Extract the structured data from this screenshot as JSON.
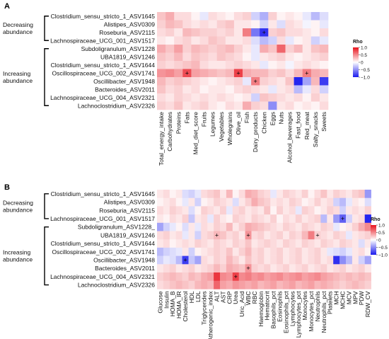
{
  "chart_data": [
    {
      "panel_label": "A",
      "type": "heatmap",
      "legend": {
        "title": "Rho",
        "ticks": [
          "1.0",
          "0.5",
          "0",
          "−0.5",
          "−1.0"
        ]
      },
      "groups": [
        {
          "label_lines": [
            "Decreasing",
            "abundance"
          ],
          "rows": [
            0,
            3
          ]
        },
        {
          "label_lines": [
            "Increasing",
            "abundance"
          ],
          "rows": [
            4,
            11
          ]
        }
      ],
      "rows": [
        "Clostridium_sensu_stricto_1_ASV1645",
        "Alistipes_ASV0309",
        "Roseburia_ASV2115",
        "Lachnospiraceae_UCG_001_ASV1517",
        "Subdoligranulum_ASV1228",
        "UBA1819_ASV1246",
        "Clostridium_sensu_stricto_1_ASV1644",
        "Oscillospiraceae_UCG_002_ASV1741",
        "Oscillibacter_ASV1948",
        "Bacteroides_ASV2011",
        "Lachnospiraceae_UCG_004_ASV2321",
        "Lachnoclostridium_ASV2326"
      ],
      "columns": [
        "Total_energy_intake",
        "Carbohydrates",
        "Proteins",
        "Fats",
        "Med_diet_score",
        "Fruits",
        "Legumes",
        "Vegetables",
        "Wholegrains",
        "Olive_oil",
        "Fish",
        "Dairy_products",
        "Chicken",
        "Eggs",
        "Nuts",
        "Alcohol_beverages",
        "Fast_food",
        "Red_meat",
        "Salty_snacks",
        "Sweets"
      ],
      "values": [
        [
          0.25,
          0.35,
          0.15,
          0.15,
          0.05,
          -0.1,
          0.15,
          0.1,
          0.05,
          0.15,
          0.2,
          -0.2,
          -0.35,
          0.2,
          0.05,
          0.1,
          0.05,
          -0.1,
          -0.3,
          -0.15
        ],
        [
          0.2,
          0.3,
          0.25,
          0.15,
          0.1,
          0.15,
          0.1,
          0.2,
          0.25,
          0.1,
          0.1,
          0.05,
          -0.2,
          0.1,
          -0.15,
          0.15,
          0.1,
          -0.05,
          0.05,
          -0.1
        ],
        [
          0.15,
          0.2,
          0.1,
          0.3,
          0.25,
          0.2,
          0.2,
          0.15,
          0.2,
          0.1,
          0.55,
          -0.6,
          -0.9,
          0.2,
          0.25,
          0.15,
          0.15,
          0.1,
          0.05,
          0.15
        ],
        [
          0.1,
          0.05,
          0.15,
          0.2,
          0.1,
          0.15,
          0.25,
          0.2,
          0.1,
          0.1,
          0.15,
          -0.15,
          -0.3,
          -0.2,
          0.15,
          -0.1,
          0.05,
          0.1,
          -0.2,
          -0.1
        ],
        [
          0.35,
          0.25,
          0.4,
          0.2,
          0.3,
          0.25,
          0.2,
          0.25,
          0.3,
          0.2,
          0.1,
          -0.1,
          0.35,
          0.25,
          0.65,
          0.2,
          0.3,
          0.1,
          0.25,
          0.3
        ],
        [
          0.25,
          0.2,
          0.3,
          0.15,
          0.25,
          0.2,
          0.15,
          0.25,
          0.2,
          0.15,
          0.05,
          -0.1,
          0.1,
          0.15,
          0.2,
          0.1,
          0.05,
          0.1,
          0.15,
          0.2
        ],
        [
          0.2,
          0.15,
          0.2,
          0.25,
          0.3,
          0.15,
          0.1,
          0.1,
          0.15,
          0.2,
          0.15,
          0.1,
          -0.1,
          0.05,
          0.1,
          -0.05,
          0.1,
          0.15,
          0.1,
          0.05
        ],
        [
          0.45,
          0.5,
          0.4,
          0.75,
          0.4,
          0.35,
          0.3,
          0.25,
          0.3,
          0.8,
          0.35,
          0.3,
          0.3,
          0.2,
          0.25,
          0.15,
          0.3,
          0.55,
          0.35,
          0.3
        ],
        [
          0.3,
          0.2,
          0.25,
          0.2,
          0.15,
          0.1,
          0.05,
          0.1,
          0.15,
          0.2,
          -0.1,
          0.55,
          0.2,
          0.15,
          0.1,
          0.25,
          -0.95,
          -0.4,
          0.3,
          -0.85
        ],
        [
          0.25,
          0.15,
          0.2,
          0.1,
          0.15,
          0.05,
          0.1,
          0.1,
          0.05,
          0.15,
          0.2,
          0.15,
          0.1,
          -0.1,
          0.1,
          0.15,
          -0.3,
          -0.1,
          0.15,
          -0.2
        ],
        [
          0.15,
          0.1,
          0.2,
          0.15,
          0.1,
          0.15,
          0.1,
          0.15,
          0.1,
          0.05,
          0.1,
          -0.2,
          0.25,
          0.2,
          0.15,
          0.1,
          0.15,
          0.05,
          0.2,
          0.1
        ],
        [
          0.2,
          0.15,
          0.25,
          0.1,
          0.15,
          0.2,
          0.1,
          0.05,
          0.15,
          0.1,
          0.35,
          0.2,
          0.15,
          -0.5,
          0.1,
          0.15,
          0.05,
          0.1,
          0.05,
          0.15
        ]
      ],
      "stars": [
        [
          2,
          12
        ],
        [
          7,
          3
        ],
        [
          7,
          9
        ],
        [
          7,
          17
        ],
        [
          8,
          11
        ]
      ]
    },
    {
      "panel_label": "B",
      "type": "heatmap",
      "legend": {
        "title": "Rho",
        "ticks": [
          "1.0",
          "0.5",
          "0",
          "−0.5",
          "−1.0"
        ]
      },
      "groups": [
        {
          "label_lines": [
            "Decreasing",
            "abundance"
          ],
          "rows": [
            0,
            3
          ]
        },
        {
          "label_lines": [
            "Increasing",
            "abundance"
          ],
          "rows": [
            4,
            11
          ]
        }
      ],
      "rows": [
        "Clostridium_sensu_stricto_1_ASV1645",
        "Alistipes_ASV0309",
        "Roseburia_ASV2115",
        "Lachnospiraceae_UCG_001_ASV1517",
        "Subdoligranulum_ASV1228_",
        "UBA1819_ASV1246",
        "Clostridium_sensu_stricto_1_ASV1644",
        "Oscillospiraceae_UCG_002_ASV1741",
        "Oscillibacter_ASV1948",
        "Bacteroides_ASV2011",
        "Lachnospiraceae_UCG_004_ASV2321",
        "Lachnoclostridium_ASV2326"
      ],
      "columns": [
        "Glucose",
        "Insulin",
        "HOMA_B",
        "HOMA_IR",
        "Cholesterol",
        "HDL",
        "LDL",
        "Triglycerides",
        "Atherogenic_index",
        "ALT",
        "AST",
        "CRP",
        "Urea",
        "Uric_Acid",
        "WBC",
        "RBC",
        "Haemoglobin",
        "Hematocrit",
        "Basophils_pct",
        "Eosinophils",
        "Eosinophils_pct",
        "Lymphocytes",
        "Lymphocytes_pct",
        "Monocytes",
        "Monocytes_pct",
        "Neutrophils",
        "Neutrophils_pct",
        "Platelets",
        "MCH",
        "MCHC",
        "MCV",
        "MPV",
        "PDW",
        "RDW_CV"
      ],
      "values": [
        [
          0.1,
          0.15,
          0.05,
          0.1,
          -0.15,
          -0.2,
          -0.1,
          0.15,
          0.2,
          0.25,
          0.1,
          0.3,
          0.05,
          0.15,
          0.35,
          0.3,
          0.2,
          0.15,
          -0.1,
          0.1,
          0.2,
          0.15,
          0.1,
          0.2,
          0.05,
          0.15,
          0.25,
          0.1,
          0.2,
          0.15,
          0.1,
          0.2,
          0.25,
          -0.45
        ],
        [
          0.05,
          0.1,
          0.15,
          0.05,
          -0.1,
          0.1,
          -0.2,
          0.05,
          0.1,
          0.2,
          0.15,
          0.1,
          -0.15,
          0.1,
          0.2,
          0.35,
          0.25,
          0.2,
          0.1,
          0.15,
          0.1,
          0.2,
          0.15,
          0.05,
          0.1,
          0.2,
          0.1,
          0.15,
          -0.2,
          -0.3,
          -0.1,
          0.1,
          0.05,
          -0.15
        ],
        [
          0.15,
          0.1,
          0.2,
          0.15,
          0.1,
          -0.15,
          0.05,
          0.2,
          0.15,
          0.1,
          0.2,
          -0.1,
          0.15,
          0.2,
          0.1,
          0.15,
          0.1,
          0.25,
          0.05,
          0.2,
          0.1,
          0.15,
          -0.1,
          0.2,
          0.15,
          0.05,
          0.1,
          0.2,
          0.15,
          -0.2,
          0.1,
          0.15,
          0.1,
          0.2
        ],
        [
          0.1,
          0.05,
          0.15,
          0.1,
          0.2,
          -0.25,
          0.1,
          0.15,
          -0.1,
          0.2,
          0.1,
          0.05,
          0.2,
          0.15,
          0.1,
          0.2,
          0.15,
          0.1,
          0.2,
          0.05,
          0.15,
          0.1,
          0.2,
          0.1,
          0.15,
          0.2,
          -0.3,
          0.1,
          -0.45,
          -0.7,
          -0.2,
          0.1,
          0.15,
          -0.95
        ],
        [
          -0.4,
          -0.2,
          -0.1,
          0.05,
          -0.15,
          0.1,
          -0.1,
          0.15,
          0.1,
          0.2,
          0.15,
          0.3,
          0.1,
          0.2,
          0.35,
          0.3,
          0.25,
          0.2,
          0.15,
          0.1,
          0.2,
          0.15,
          0.1,
          0.2,
          0.15,
          0.1,
          0.2,
          0.15,
          -0.1,
          0.05,
          0.1,
          0.2,
          0.35,
          0.5
        ],
        [
          0.15,
          0.2,
          0.1,
          0.15,
          -0.1,
          0.1,
          -0.2,
          0.15,
          0.2,
          0.3,
          0.25,
          0.15,
          0.2,
          0.1,
          0.45,
          0.15,
          0.2,
          0.1,
          0.15,
          0.2,
          0.1,
          0.2,
          0.15,
          0.3,
          0.55,
          0.2,
          0.15,
          0.1,
          0.2,
          0.15,
          -0.1,
          0.1,
          0.15,
          0.2
        ],
        [
          0.1,
          0.15,
          0.05,
          0.1,
          0.15,
          0.1,
          0.2,
          0.15,
          0.1,
          0.2,
          0.15,
          0.1,
          0.2,
          0.15,
          0.25,
          0.1,
          0.15,
          0.2,
          0.15,
          0.1,
          0.2,
          0.15,
          0.1,
          0.2,
          0.15,
          0.1,
          0.2,
          0.15,
          0.1,
          0.2,
          0.15,
          0.1,
          -0.15,
          0.1
        ],
        [
          -0.3,
          -0.2,
          -0.15,
          -0.1,
          0.1,
          -0.2,
          0.05,
          0.1,
          0.15,
          0.2,
          0.15,
          0.25,
          0.1,
          0.2,
          0.3,
          0.15,
          0.2,
          0.1,
          0.15,
          0.2,
          0.1,
          0.15,
          0.2,
          0.1,
          0.15,
          0.2,
          0.1,
          -0.1,
          -0.15,
          -0.2,
          -0.1,
          0.1,
          0.15,
          0.05
        ],
        [
          -0.2,
          -0.1,
          -0.15,
          -0.3,
          -0.85,
          -0.25,
          -0.4,
          0.15,
          0.1,
          0.2,
          0.15,
          0.3,
          0.2,
          0.1,
          0.25,
          0.15,
          0.2,
          0.1,
          0.15,
          0.2,
          0.1,
          0.15,
          0.2,
          0.1,
          0.15,
          0.2,
          0.1,
          0.15,
          -0.9,
          -0.5,
          -0.3,
          0.1,
          -0.2,
          -0.4
        ],
        [
          0.1,
          0.15,
          0.2,
          0.1,
          0.15,
          0.2,
          0.1,
          0.15,
          0.2,
          0.3,
          0.2,
          0.35,
          0.3,
          0.25,
          0.45,
          0.2,
          0.15,
          0.2,
          0.1,
          0.15,
          0.2,
          0.1,
          0.15,
          0.2,
          0.1,
          0.15,
          0.2,
          0.1,
          0.15,
          0.2,
          0.1,
          0.15,
          0.2,
          0.1
        ],
        [
          0.2,
          0.25,
          0.3,
          0.25,
          0.2,
          0.3,
          0.25,
          0.35,
          0.4,
          0.85,
          0.5,
          0.45,
          0.8,
          0.5,
          0.55,
          0.45,
          0.5,
          0.4,
          0.45,
          0.5,
          0.4,
          0.45,
          0.5,
          0.4,
          0.45,
          0.5,
          0.4,
          0.35,
          0.3,
          0.25,
          0.3,
          0.25,
          0.3,
          0.25
        ],
        [
          0.15,
          0.2,
          0.25,
          0.3,
          0.25,
          0.2,
          0.3,
          0.35,
          0.3,
          0.65,
          0.4,
          0.35,
          0.45,
          0.4,
          0.35,
          0.4,
          0.3,
          0.35,
          0.4,
          0.3,
          0.35,
          0.4,
          0.3,
          0.35,
          0.4,
          0.3,
          0.35,
          0.3,
          0.25,
          0.2,
          0.25,
          0.3,
          0.25,
          0.2
        ]
      ],
      "stars": [
        [
          3,
          29
        ],
        [
          5,
          9
        ],
        [
          5,
          14
        ],
        [
          5,
          25
        ],
        [
          8,
          4
        ],
        [
          9,
          14
        ],
        [
          10,
          12
        ]
      ]
    }
  ]
}
